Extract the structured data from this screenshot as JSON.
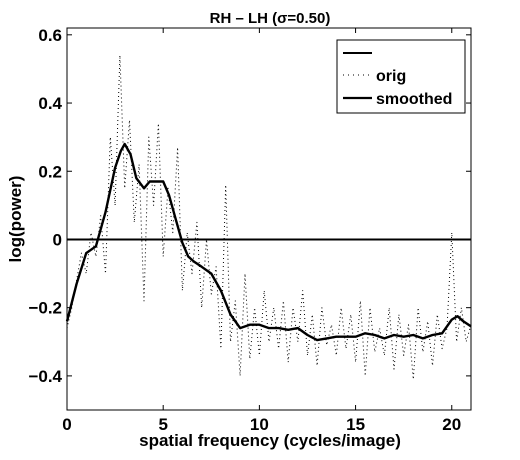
{
  "chart_data": {
    "type": "line",
    "title": "RH – LH (σ=0.50)",
    "xlabel": "spatial frequency (cycles/image)",
    "ylabel": "log(power)",
    "xlim": [
      0,
      21
    ],
    "ylim": [
      -0.5,
      0.62
    ],
    "x_ticks": [
      0,
      5,
      10,
      15,
      20
    ],
    "x_tick_labels": [
      "0",
      "5",
      "10",
      "15",
      "20"
    ],
    "y_ticks": [
      -0.4,
      -0.2,
      0,
      0.2,
      0.4,
      0.6
    ],
    "y_tick_labels": [
      "−0.4",
      "−0.2",
      "0",
      "0.2",
      "0.4",
      "0.6"
    ],
    "grid": false,
    "legend_position": "top-right",
    "legend": [
      "",
      "orig",
      "smoothed"
    ],
    "series": [
      {
        "name": "",
        "style": "solid",
        "x": [
          0,
          21
        ],
        "y": [
          0,
          0
        ]
      },
      {
        "name": "orig",
        "style": "dotted",
        "x": [
          0,
          0.25,
          0.5,
          0.75,
          1,
          1.25,
          1.5,
          1.75,
          2,
          2.25,
          2.5,
          2.75,
          3,
          3.25,
          3.5,
          3.75,
          4,
          4.25,
          4.5,
          4.75,
          5,
          5.25,
          5.5,
          5.75,
          6,
          6.25,
          6.5,
          6.75,
          7,
          7.25,
          7.5,
          7.75,
          8,
          8.25,
          8.5,
          8.75,
          9,
          9.25,
          9.5,
          9.75,
          10,
          10.25,
          10.5,
          10.75,
          11,
          11.25,
          11.5,
          11.75,
          12,
          12.25,
          12.5,
          12.75,
          13,
          13.25,
          13.5,
          13.75,
          14,
          14.25,
          14.5,
          14.75,
          15,
          15.25,
          15.5,
          15.75,
          16,
          16.25,
          16.5,
          16.75,
          17,
          17.25,
          17.5,
          17.75,
          18,
          18.25,
          18.5,
          18.75,
          19,
          19.25,
          19.5,
          19.75,
          20,
          20.25,
          20.5,
          20.75,
          21
        ],
        "y": [
          -0.26,
          -0.2,
          -0.12,
          -0.04,
          -0.1,
          0.02,
          -0.05,
          0.07,
          -0.1,
          0.3,
          0.1,
          0.54,
          0.15,
          0.35,
          0.05,
          0.22,
          -0.18,
          0.3,
          0.1,
          0.34,
          -0.05,
          0.15,
          0.02,
          0.27,
          -0.15,
          0.02,
          -0.1,
          0.05,
          -0.2,
          0.0,
          -0.16,
          -0.08,
          -0.32,
          0.16,
          -0.3,
          -0.18,
          -0.4,
          -0.1,
          -0.35,
          -0.2,
          -0.34,
          -0.15,
          -0.3,
          -0.2,
          -0.32,
          -0.18,
          -0.36,
          -0.2,
          -0.3,
          -0.15,
          -0.34,
          -0.22,
          -0.37,
          -0.2,
          -0.31,
          -0.25,
          -0.34,
          -0.2,
          -0.32,
          -0.22,
          -0.36,
          -0.18,
          -0.4,
          -0.2,
          -0.33,
          -0.26,
          -0.34,
          -0.2,
          -0.38,
          -0.22,
          -0.34,
          -0.25,
          -0.41,
          -0.2,
          -0.33,
          -0.24,
          -0.37,
          -0.22,
          -0.32,
          -0.26,
          0.02,
          -0.3,
          -0.2,
          -0.3,
          -0.25
        ]
      },
      {
        "name": "smoothed",
        "style": "solid",
        "x": [
          0,
          0.5,
          1,
          1.5,
          2,
          2.5,
          2.8,
          3,
          3.3,
          3.6,
          4,
          4.3,
          4.7,
          5,
          5.3,
          5.6,
          6,
          6.3,
          6.6,
          7,
          7.5,
          8,
          8.5,
          9,
          9.5,
          10,
          10.5,
          11,
          11.5,
          12,
          12.5,
          13,
          13.5,
          14,
          14.5,
          15,
          15.5,
          16,
          16.5,
          17,
          17.5,
          18,
          18.5,
          19,
          19.5,
          20,
          20.3,
          20.6,
          21
        ],
        "y": [
          -0.24,
          -0.13,
          -0.04,
          -0.02,
          0.08,
          0.21,
          0.26,
          0.28,
          0.25,
          0.18,
          0.15,
          0.17,
          0.17,
          0.17,
          0.13,
          0.07,
          -0.01,
          -0.05,
          -0.065,
          -0.08,
          -0.1,
          -0.15,
          -0.22,
          -0.26,
          -0.25,
          -0.25,
          -0.26,
          -0.26,
          -0.265,
          -0.26,
          -0.28,
          -0.295,
          -0.29,
          -0.285,
          -0.285,
          -0.285,
          -0.275,
          -0.28,
          -0.29,
          -0.28,
          -0.285,
          -0.28,
          -0.29,
          -0.28,
          -0.275,
          -0.235,
          -0.225,
          -0.24,
          -0.255
        ]
      }
    ]
  }
}
